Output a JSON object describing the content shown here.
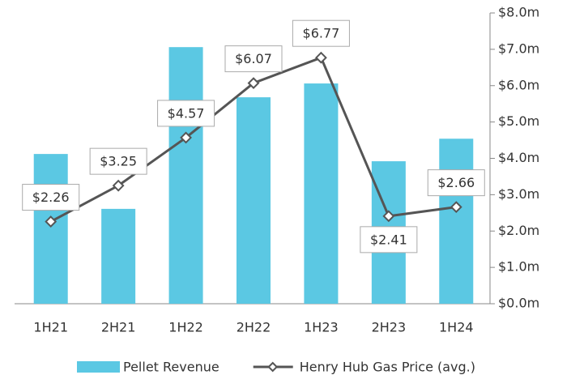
{
  "chart_data": {
    "type": "combo",
    "categories": [
      "1H21",
      "2H21",
      "1H22",
      "2H22",
      "1H23",
      "2H23",
      "1H24"
    ],
    "series": [
      {
        "name": "Pellet Revenue",
        "type": "bar",
        "color": "#5bc8e3",
        "values": [
          4.12,
          2.61,
          7.06,
          5.68,
          6.06,
          3.92,
          4.54
        ]
      },
      {
        "name": "Henry Hub Gas Price (avg.)",
        "type": "line",
        "color": "#555555",
        "values": [
          2.26,
          3.25,
          4.57,
          6.07,
          6.77,
          2.41,
          2.66
        ],
        "value_labels": [
          "$2.26",
          "$3.25",
          "$4.57",
          "$6.07",
          "$6.77",
          "$2.41",
          "$2.66"
        ]
      }
    ],
    "ylim": [
      0,
      8
    ],
    "yticks": [
      {
        "value": 0,
        "label": "$0.0m"
      },
      {
        "value": 1,
        "label": "$1.0m"
      },
      {
        "value": 2,
        "label": "$2.0m"
      },
      {
        "value": 3,
        "label": "$3.0m"
      },
      {
        "value": 4,
        "label": "$4.0m"
      },
      {
        "value": 5,
        "label": "$5.0m"
      },
      {
        "value": 6,
        "label": "$6.0m"
      },
      {
        "value": 7,
        "label": "$7.0m"
      },
      {
        "value": 8,
        "label": "$8.0m"
      }
    ],
    "y_axis_side": "right",
    "grid": false,
    "legend": "bottom"
  }
}
